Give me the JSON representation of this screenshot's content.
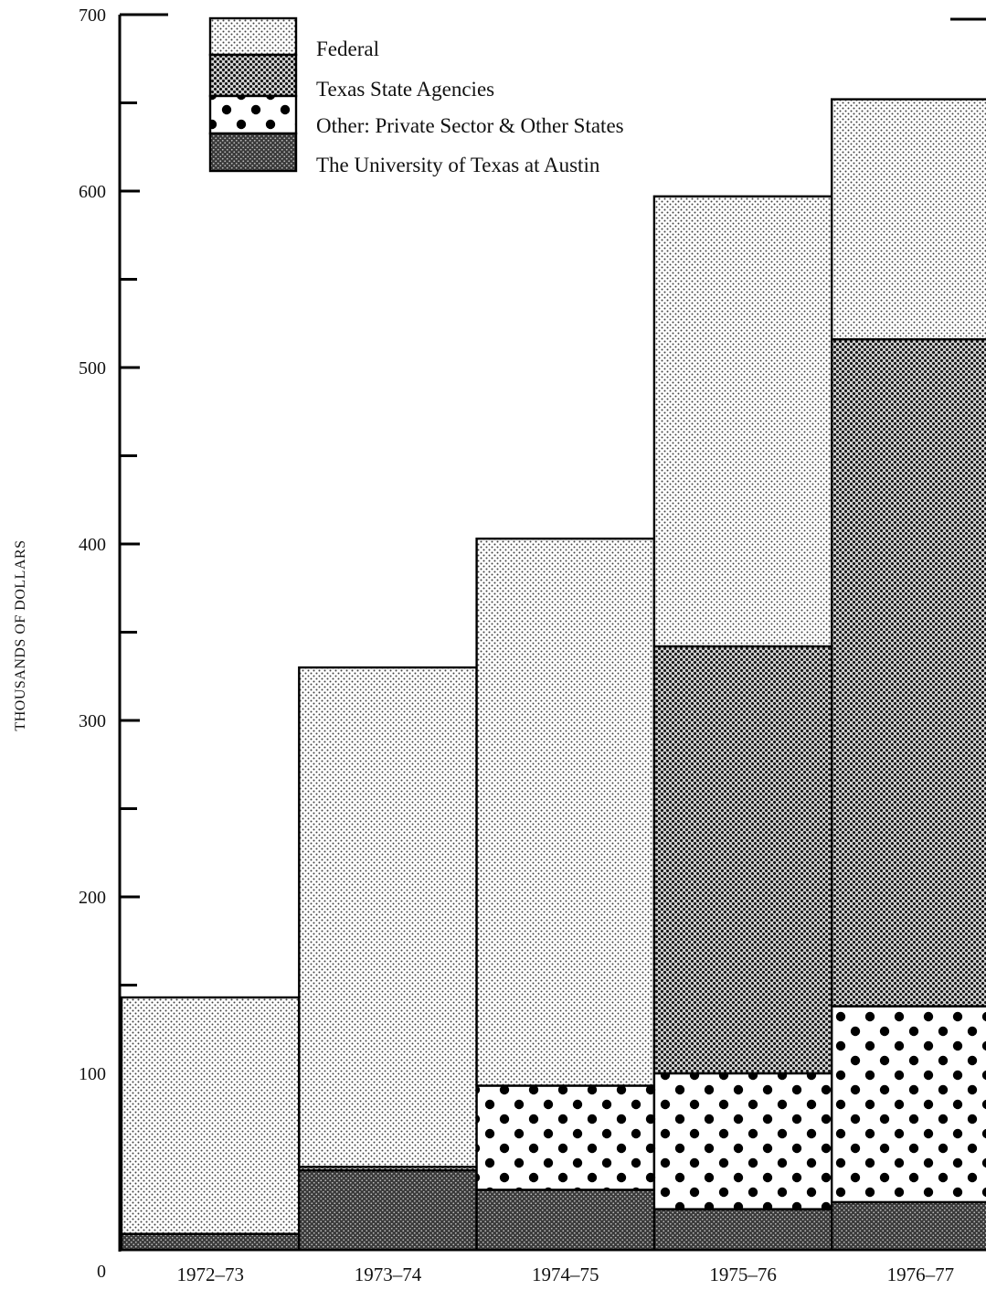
{
  "chart_data": {
    "type": "bar",
    "stacked": true,
    "ylabel": "THOUSANDS OF DOLLARS",
    "ylim": [
      0,
      700
    ],
    "yticks": [
      "0",
      "100",
      "200",
      "300",
      "400",
      "500",
      "600",
      "700"
    ],
    "categories": [
      "1972–73",
      "1973–74",
      "1974–75",
      "1975–76",
      "1976–77"
    ],
    "series": [
      {
        "name": "The University of Texas at Austin",
        "pattern": "dense-dots",
        "values": [
          9,
          45,
          34,
          23,
          27
        ]
      },
      {
        "name": "Other: Private Sector & Other States",
        "pattern": "large-dots",
        "values": [
          0,
          0,
          59,
          77,
          111
        ]
      },
      {
        "name": "Texas State Agencies",
        "pattern": "medium-dots",
        "values": [
          0,
          2,
          0,
          242,
          378
        ]
      },
      {
        "name": "Federal",
        "pattern": "light-dots",
        "values": [
          134,
          283,
          310,
          255,
          136
        ]
      }
    ],
    "legend": {
      "position": "top-left",
      "order": [
        "Federal",
        "Texas State Agencies",
        "Other: Private Sector & Other States",
        "The University of Texas at Austin"
      ]
    },
    "grid": false
  }
}
